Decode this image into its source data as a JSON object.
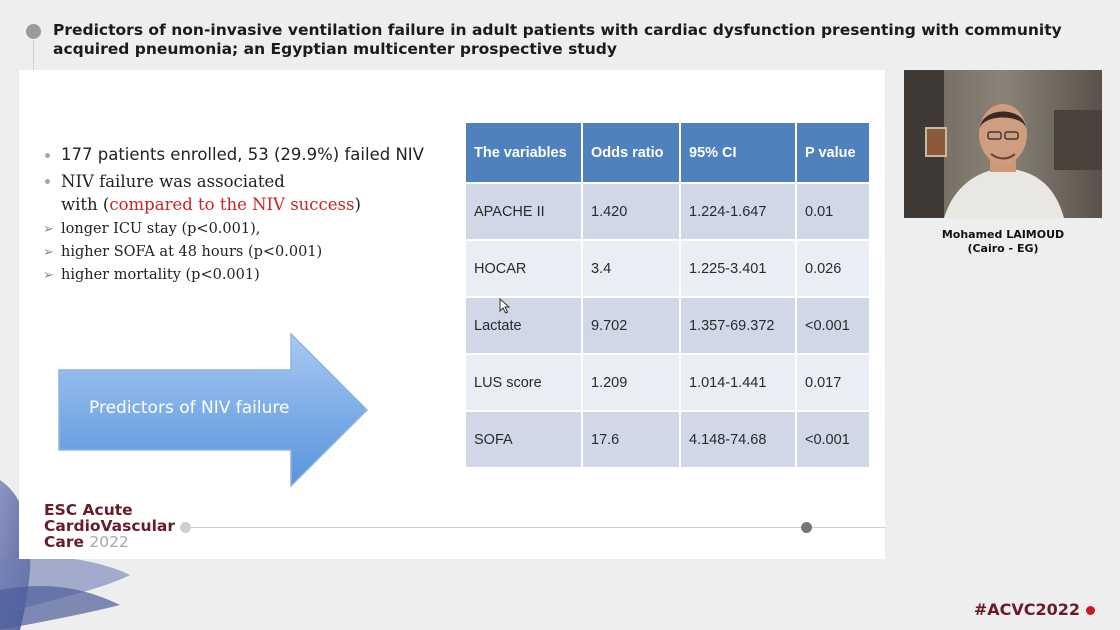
{
  "header": {
    "title": "Predictors of non-invasive ventilation failure in adult patients with cardiac dysfunction presenting with community acquired pneumonia; an Egyptian multicenter prospective study"
  },
  "slide": {
    "bullets": {
      "b1": "177 patients enrolled, 53 (29.9%) failed NIV",
      "b2_line1": "NIV failure was associated",
      "b2_with": "with (",
      "b2_red": "compared to the NIV success",
      "b2_close": ")",
      "sub": [
        "longer ICU stay (p<0.001),",
        " higher SOFA at 48 hours (p<0.001)",
        " higher mortality (p<0.001)"
      ]
    },
    "arrow_label": "Predictors of NIV failure",
    "table": {
      "headers": [
        "The  variables",
        "Odds ratio",
        "95% CI",
        "P value"
      ],
      "rows": [
        [
          "APACHE II",
          "1.420",
          "1.224-1.647",
          "0.01"
        ],
        [
          "HOCAR",
          "3.4",
          "1.225-3.401",
          "0.026"
        ],
        [
          "Lactate",
          "9.702",
          "1.357-69.372",
          "<0.001"
        ],
        [
          "LUS score",
          "1.209",
          "1.014-1.441",
          "0.017"
        ],
        [
          "SOFA",
          "17.6",
          "4.148-74.68",
          "<0.001"
        ]
      ]
    },
    "logo": {
      "line1": "ESC Acute",
      "line2": "CardioVascular",
      "line3": "Care",
      "year": "2022"
    }
  },
  "speaker": {
    "name": "Mohamed LAIMOUD",
    "affiliation": "(Cairo - EG)"
  },
  "hashtag": "#ACVC2022",
  "colors": {
    "table_header": "#4f81bd",
    "row_dark": "#d0d8e8",
    "row_light": "#e9edf4",
    "brand": "#6a1b2a",
    "highlight_red": "#c82424"
  }
}
